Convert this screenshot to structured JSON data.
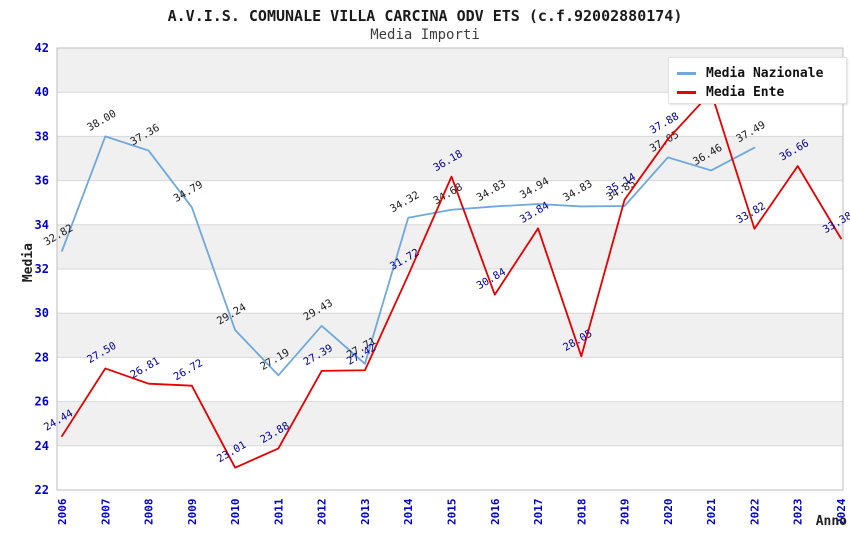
{
  "chart_data": {
    "type": "line",
    "title": "A.V.I.S. COMUNALE VILLA CARCINA ODV ETS (c.f.92002880174)",
    "subtitle": "Media Importi",
    "xlabel": "Anno",
    "ylabel": "Media",
    "ylim": [
      22,
      42
    ],
    "y_tick_step": 2,
    "x_ticks": [
      "2006",
      "2007",
      "2008",
      "2009",
      "2010",
      "2011",
      "2012",
      "2013",
      "2014",
      "2015",
      "2016",
      "2017",
      "2018",
      "2019",
      "2020",
      "2021",
      "2022",
      "2023",
      "2024"
    ],
    "grid": "horizontal gridlines with alternating gray/white bands",
    "legend_position": "top-right",
    "axis_tick_color": "#0000CC",
    "band_gray": "#F0F0F0",
    "gridline_color": "#D8D8D8",
    "plot_border_color": "#BEBEBE",
    "series": [
      {
        "name": "Media Nazionale",
        "color": "#6FA8DC",
        "label_color": "#1a1a1a",
        "x": [
          2006,
          2007,
          2008,
          2009,
          2010,
          2011,
          2012,
          2013,
          2014,
          2015,
          2016,
          2017,
          2018,
          2019,
          2020,
          2021,
          2022
        ],
        "values": [
          32.82,
          38.0,
          37.36,
          34.79,
          29.24,
          27.19,
          29.43,
          27.71,
          34.32,
          34.68,
          34.83,
          34.94,
          34.83,
          34.85,
          37.05,
          36.46,
          37.49
        ]
      },
      {
        "name": "Media Ente",
        "color": "#E60000",
        "label_color": "#000099",
        "x": [
          2006,
          2007,
          2008,
          2009,
          2010,
          2011,
          2012,
          2013,
          2014,
          2015,
          2016,
          2017,
          2018,
          2019,
          2020,
          2021,
          2022,
          2023,
          2024
        ],
        "values": [
          24.44,
          27.5,
          26.81,
          26.72,
          23.01,
          23.88,
          27.39,
          27.42,
          31.72,
          36.18,
          30.84,
          33.84,
          28.05,
          35.14,
          37.88,
          40.0,
          33.82,
          36.66,
          33.38
        ],
        "hidden_label_years": [
          2021
        ]
      }
    ]
  }
}
